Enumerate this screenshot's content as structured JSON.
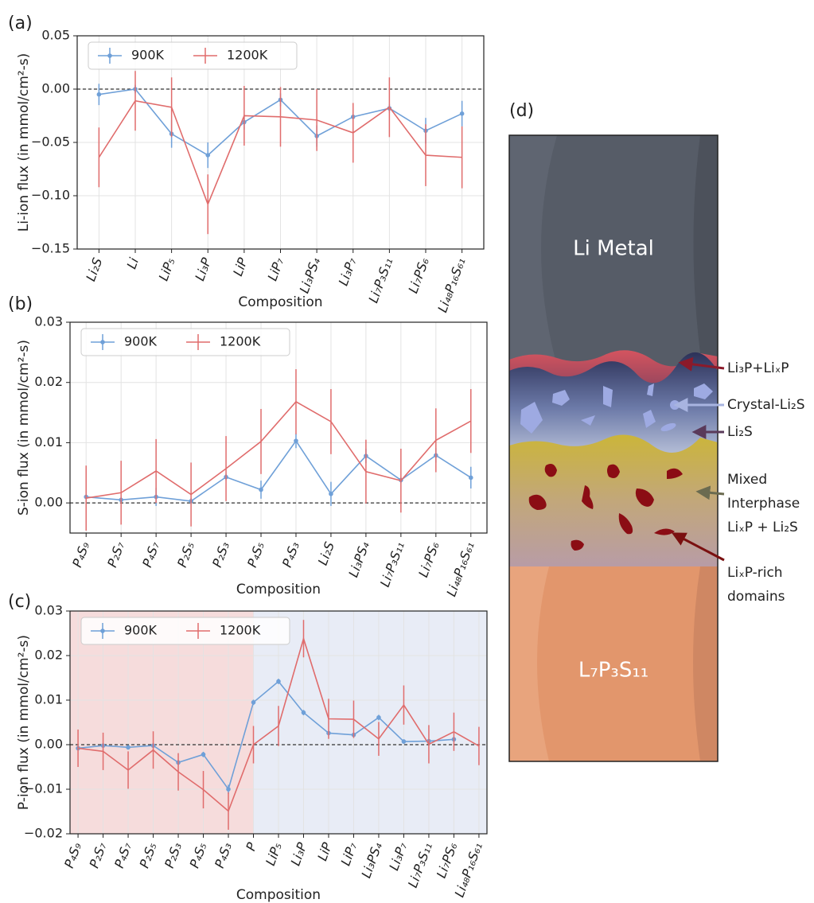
{
  "chart_data": [
    {
      "type": "line",
      "panel_label": "(a)",
      "x_label": "Composition",
      "y_label": "Li-ion flux (in mmol/cm²-s)",
      "categories": [
        "Li₂S",
        "Li",
        "LiP₅",
        "Li₃P",
        "LiP",
        "LiP₇",
        "Li₃PS₄",
        "Li₃P₇",
        "Li₇P₃S₁₁",
        "Li₇PS₆",
        "Li₄₈P₁₆S₆₁"
      ],
      "series": [
        {
          "name": "900K",
          "color": "#6fa0d8",
          "marker": true,
          "values": [
            -0.005,
            0.0,
            -0.042,
            -0.062,
            -0.031,
            -0.01,
            -0.044,
            -0.026,
            -0.018,
            -0.039,
            -0.023
          ],
          "errors": [
            0.01,
            0.004,
            0.013,
            0.012,
            0.007,
            0.006,
            0.01,
            0.008,
            0.004,
            0.012,
            0.012
          ]
        },
        {
          "name": "1200K",
          "color": "#e06c6c",
          "marker": false,
          "values": [
            -0.064,
            -0.011,
            -0.017,
            -0.108,
            -0.025,
            -0.026,
            -0.029,
            -0.041,
            -0.017,
            -0.062,
            -0.064
          ],
          "errors": [
            0.028,
            0.028,
            0.028,
            0.028,
            0.028,
            0.028,
            0.029,
            0.028,
            0.028,
            0.029,
            0.029
          ]
        }
      ],
      "ylim": [
        -0.15,
        0.05
      ],
      "yticks": [
        {
          "value": -0.15,
          "label": "−0.15"
        },
        {
          "value": -0.1,
          "label": "−0.10"
        },
        {
          "value": -0.05,
          "label": "−0.05"
        },
        {
          "value": 0.0,
          "label": "0.00"
        },
        {
          "value": 0.05,
          "label": "0.05"
        }
      ],
      "grid": true,
      "zero_line": true,
      "legend": "upper left"
    },
    {
      "type": "line",
      "panel_label": "(b)",
      "x_label": "Composition",
      "y_label": "S-ion flux (in mmol/cm²-s)",
      "categories": [
        "P₄S₉",
        "P₂S₇",
        "P₄S₇",
        "P₂S₅",
        "P₂S₃",
        "P₄S₅",
        "P₄S₃",
        "Li₂S",
        "Li₃PS₄",
        "Li₇P₃S₁₁",
        "Li₇PS₆",
        "Li₄₈P₁₆S₆₁"
      ],
      "series": [
        {
          "name": "900K",
          "color": "#6fa0d8",
          "marker": true,
          "values": [
            0.001,
            0.0005,
            0.001,
            0.0003,
            0.0043,
            0.0022,
            0.0103,
            0.0015,
            0.0078,
            0.0038,
            0.0079,
            0.0042
          ],
          "errors": [
            0.0005,
            0.0005,
            0.0015,
            0.0005,
            0.0005,
            0.0015,
            0.0012,
            0.002,
            0.0012,
            0.0005,
            0.0012,
            0.0018
          ]
        },
        {
          "name": "1200K",
          "color": "#e06c6c",
          "marker": false,
          "values": [
            0.0008,
            0.0017,
            0.0053,
            0.0014,
            0.0057,
            0.0102,
            0.0168,
            0.0135,
            0.0052,
            0.0037,
            0.0104,
            0.0136
          ],
          "errors": [
            0.0054,
            0.0053,
            0.0053,
            0.0053,
            0.0054,
            0.0054,
            0.0054,
            0.0054,
            0.0053,
            0.0053,
            0.0053,
            0.0053
          ]
        }
      ],
      "ylim": [
        -0.005,
        0.03
      ],
      "yticks": [
        {
          "value": 0.0,
          "label": "0.00"
        },
        {
          "value": 0.01,
          "label": "0.01"
        },
        {
          "value": 0.02,
          "label": "0.02"
        },
        {
          "value": 0.03,
          "label": "0.03"
        }
      ],
      "grid": true,
      "zero_line": true,
      "legend": "upper left"
    },
    {
      "type": "line",
      "panel_label": "(c)",
      "x_label": "Composition",
      "y_label": "P-ion flux (in mmol/cm²-s)",
      "categories": [
        "P₄S₉",
        "P₂S₇",
        "P₄S₇",
        "P₂S₅",
        "P₂S₃",
        "P₄S₅",
        "P₄S₃",
        "P",
        "LiP₅",
        "Li₃P",
        "LiP",
        "LiP₇",
        "Li₃PS₄",
        "Li₃P₇",
        "Li₇P₃S₁₁",
        "Li₇PS₆",
        "Li₄₈P₁₆S₆₁"
      ],
      "series": [
        {
          "name": "900K",
          "color": "#6fa0d8",
          "marker": true,
          "values": [
            -0.0008,
            -0.0002,
            -0.0006,
            -0.0002,
            -0.004,
            -0.0022,
            -0.01,
            0.0095,
            0.0142,
            0.0072,
            0.0026,
            0.0022,
            0.0061,
            0.0007,
            0.0008,
            0.0012,
            null
          ],
          "errors": [
            0.0005,
            0.0005,
            0.0005,
            0.0005,
            0.0006,
            0.0006,
            0.001,
            0.0006,
            0.0006,
            0.0006,
            0.0005,
            0.0005,
            0.0006,
            0.0005,
            0.0005,
            0.0006,
            null
          ]
        },
        {
          "name": "1200K",
          "color": "#e06c6c",
          "marker": false,
          "values": [
            -0.0008,
            -0.0015,
            -0.0057,
            -0.0012,
            -0.0061,
            -0.0101,
            -0.0149,
            0.0,
            0.0042,
            0.0238,
            0.0058,
            0.0057,
            0.0013,
            0.0089,
            0.0001,
            0.0029,
            -0.0003
          ],
          "errors": [
            0.0042,
            0.0042,
            0.0042,
            0.0042,
            0.0042,
            0.0042,
            0.0042,
            0.0042,
            0.0045,
            0.0042,
            0.0045,
            0.0042,
            0.0038,
            0.0044,
            0.0043,
            0.0043,
            0.0043
          ]
        }
      ],
      "ylim": [
        -0.02,
        0.03
      ],
      "yticks": [
        {
          "value": -0.02,
          "label": "−0.02"
        },
        {
          "value": -0.01,
          "label": "−0.01"
        },
        {
          "value": 0.0,
          "label": "0.00"
        },
        {
          "value": 0.01,
          "label": "0.01"
        },
        {
          "value": 0.02,
          "label": "0.02"
        },
        {
          "value": 0.03,
          "label": "0.03"
        }
      ],
      "grid": true,
      "zero_line": true,
      "legend": "upper left",
      "shade_split": 7,
      "shade_colors": [
        "#f6dcdc",
        "#e8ecf6"
      ]
    }
  ],
  "diagram": {
    "panel_label": "(d)",
    "top_layer": "Li Metal",
    "bottom_layer": "L₇P₃S₁₁",
    "annotations": [
      [
        "Li₃P+LiₓP"
      ],
      [
        "Crystal-Li₂S"
      ],
      [
        "Li₂S"
      ],
      [
        "Mixed",
        "Interphase",
        "LiₓP + Li₂S"
      ],
      [
        "LiₓP-rich",
        "domains"
      ]
    ]
  }
}
